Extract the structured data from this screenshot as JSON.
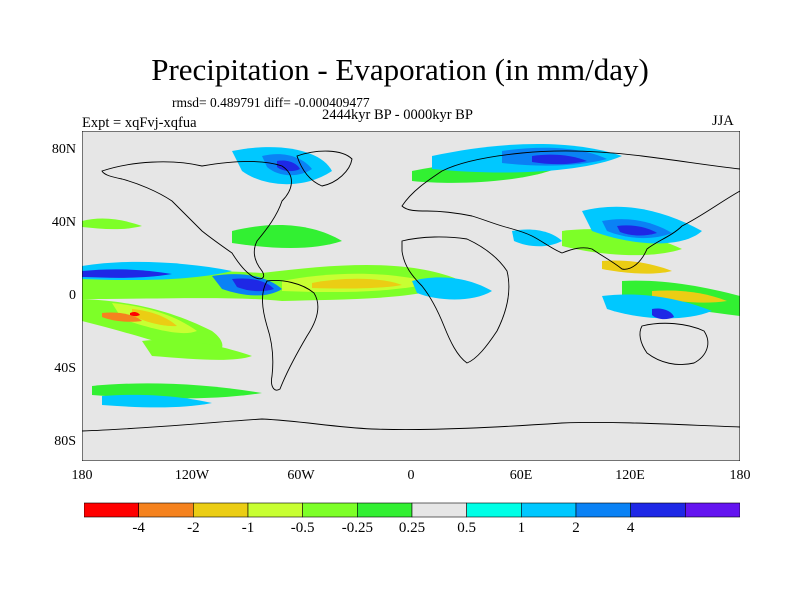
{
  "title": "Precipitation - Evaporation (in mm/day)",
  "stats_line": "rmsd= 0.489791 diff= -0.000409477",
  "period": "2444kyr BP - 0000kyr BP",
  "experiment": "Expt = xqFvj-xqfua",
  "season": "JJA",
  "lat_labels": [
    "80N",
    "40N",
    "0",
    "40S",
    "80S"
  ],
  "lon_labels": [
    "180",
    "120W",
    "60W",
    "0",
    "60E",
    "120E",
    "180"
  ],
  "colorbar": {
    "labels": [
      "-4",
      "-2",
      "-1",
      "-0.5",
      "-0.25",
      "0.25",
      "0.5",
      "1",
      "2",
      "4"
    ],
    "colors": [
      "#ff0000",
      "#f5821e",
      "#ebcd14",
      "#c8ff32",
      "#7dff28",
      "#32f032",
      "#e6e6e6",
      "#00ffe6",
      "#00c8ff",
      "#0a82f5",
      "#1e28e6",
      "#6414f0"
    ]
  },
  "map_colors": {
    "background": "#e6e6e6",
    "coastline": "#000000"
  }
}
